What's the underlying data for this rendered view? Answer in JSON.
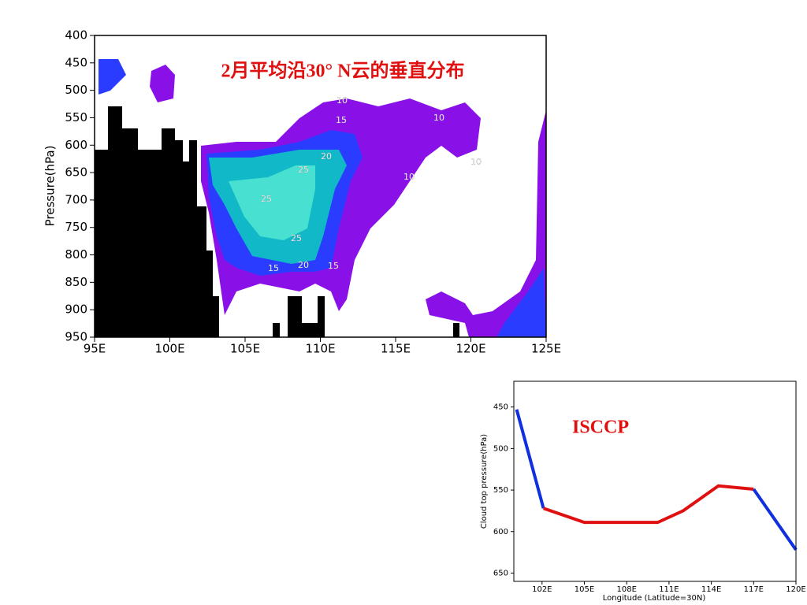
{
  "chart_data": [
    {
      "type": "contour",
      "title": "2月平均沿30° N云的垂直分布",
      "y_label": "Pressure(hPa)",
      "xlim": [
        95,
        125
      ],
      "xticks": [
        {
          "value": 95,
          "label": "95E"
        },
        {
          "value": 100,
          "label": "100E"
        },
        {
          "value": 105,
          "label": "105E"
        },
        {
          "value": 110,
          "label": "110E"
        },
        {
          "value": 115,
          "label": "115E"
        },
        {
          "value": 120,
          "label": "120E"
        },
        {
          "value": 125,
          "label": "125E"
        }
      ],
      "ylim": [
        950,
        400
      ],
      "yticks": [
        400,
        450,
        500,
        550,
        600,
        650,
        700,
        750,
        800,
        850,
        900,
        950
      ],
      "levels": [
        10,
        15,
        20,
        25
      ],
      "level_colors": [
        "#8a10e8",
        "#2a3cff",
        "#10b8c8",
        "#48e0d0"
      ]
    },
    {
      "type": "line",
      "title": "ISCCP",
      "x_label": "Longitude (Latitude=30N)",
      "y_label": "Cloud top pressure(hPa)",
      "xlim": [
        100,
        120
      ],
      "xticks": [
        {
          "value": 102,
          "label": "102E"
        },
        {
          "value": 105,
          "label": "105E"
        },
        {
          "value": 108,
          "label": "108E"
        },
        {
          "value": 111,
          "label": "111E"
        },
        {
          "value": 114,
          "label": "114E"
        },
        {
          "value": 117,
          "label": "117E"
        },
        {
          "value": 120,
          "label": "120E"
        }
      ],
      "ylim": [
        660,
        419
      ],
      "yticks": [
        450,
        500,
        550,
        600,
        650
      ],
      "series": [
        {
          "color": "#1030e0",
          "x": [
            100.2,
            102.1
          ],
          "values": [
            453,
            572
          ]
        },
        {
          "color": "#e01010",
          "x": [
            102.1,
            105,
            108,
            110.2,
            112,
            114.5,
            117
          ],
          "values": [
            572,
            589,
            589,
            589,
            575,
            545,
            549
          ]
        },
        {
          "color": "#1030e0",
          "x": [
            117,
            120
          ],
          "values": [
            549,
            622
          ]
        }
      ]
    }
  ]
}
